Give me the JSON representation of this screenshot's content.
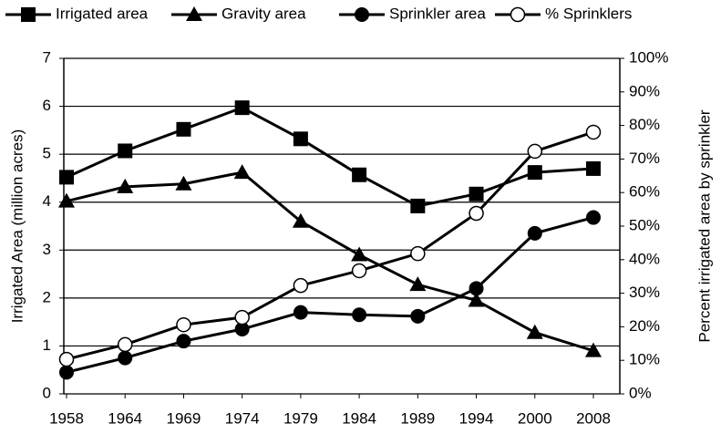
{
  "chart_data": {
    "type": "line",
    "categories": [
      "1958",
      "1964",
      "1969",
      "1974",
      "1979",
      "1984",
      "1989",
      "1994",
      "2000",
      "2008"
    ],
    "y_label": "Irrigated Area (million acres)",
    "y2_label": "Percent irrigated area by sprinkler",
    "ylim": [
      0,
      7
    ],
    "yticks": [
      0,
      1,
      2,
      3,
      4,
      5,
      6,
      7
    ],
    "y2lim": [
      0,
      100
    ],
    "y2ticks": [
      {
        "value": 0,
        "label": "0%"
      },
      {
        "value": 10,
        "label": "10%"
      },
      {
        "value": 20,
        "label": "20%"
      },
      {
        "value": 30,
        "label": "30%"
      },
      {
        "value": 40,
        "label": "40%"
      },
      {
        "value": 50,
        "label": "50%"
      },
      {
        "value": 60,
        "label": "60%"
      },
      {
        "value": 70,
        "label": "70%"
      },
      {
        "value": 80,
        "label": "80%"
      },
      {
        "value": 90,
        "label": "90%"
      },
      {
        "value": 100,
        "label": "100%"
      }
    ],
    "grid": true,
    "legend": "top",
    "series": [
      {
        "name": "Irrigated area",
        "color": "#000000",
        "marker": "square",
        "values": [
          4.52,
          5.07,
          5.52,
          5.97,
          5.32,
          4.57,
          3.92,
          4.17,
          4.62,
          4.7
        ]
      },
      {
        "name": "Gravity area",
        "color": "#000000",
        "marker": "triangle",
        "values": [
          4.02,
          4.32,
          4.38,
          4.62,
          3.6,
          2.9,
          2.28,
          1.95,
          1.28,
          0.9
        ]
      },
      {
        "name": "Sprinkler area",
        "color": "#000000",
        "marker": "circle",
        "values": [
          0.45,
          0.75,
          1.1,
          1.35,
          1.7,
          1.65,
          1.62,
          2.2,
          3.35,
          3.68
        ]
      },
      {
        "name": "% Sprinklers",
        "color": "#000000",
        "marker": "open-circle",
        "axis": "y2",
        "values": [
          10.3,
          14.7,
          20.6,
          22.8,
          32.3,
          36.7,
          41.8,
          53.8,
          72.3,
          78
        ]
      }
    ]
  }
}
